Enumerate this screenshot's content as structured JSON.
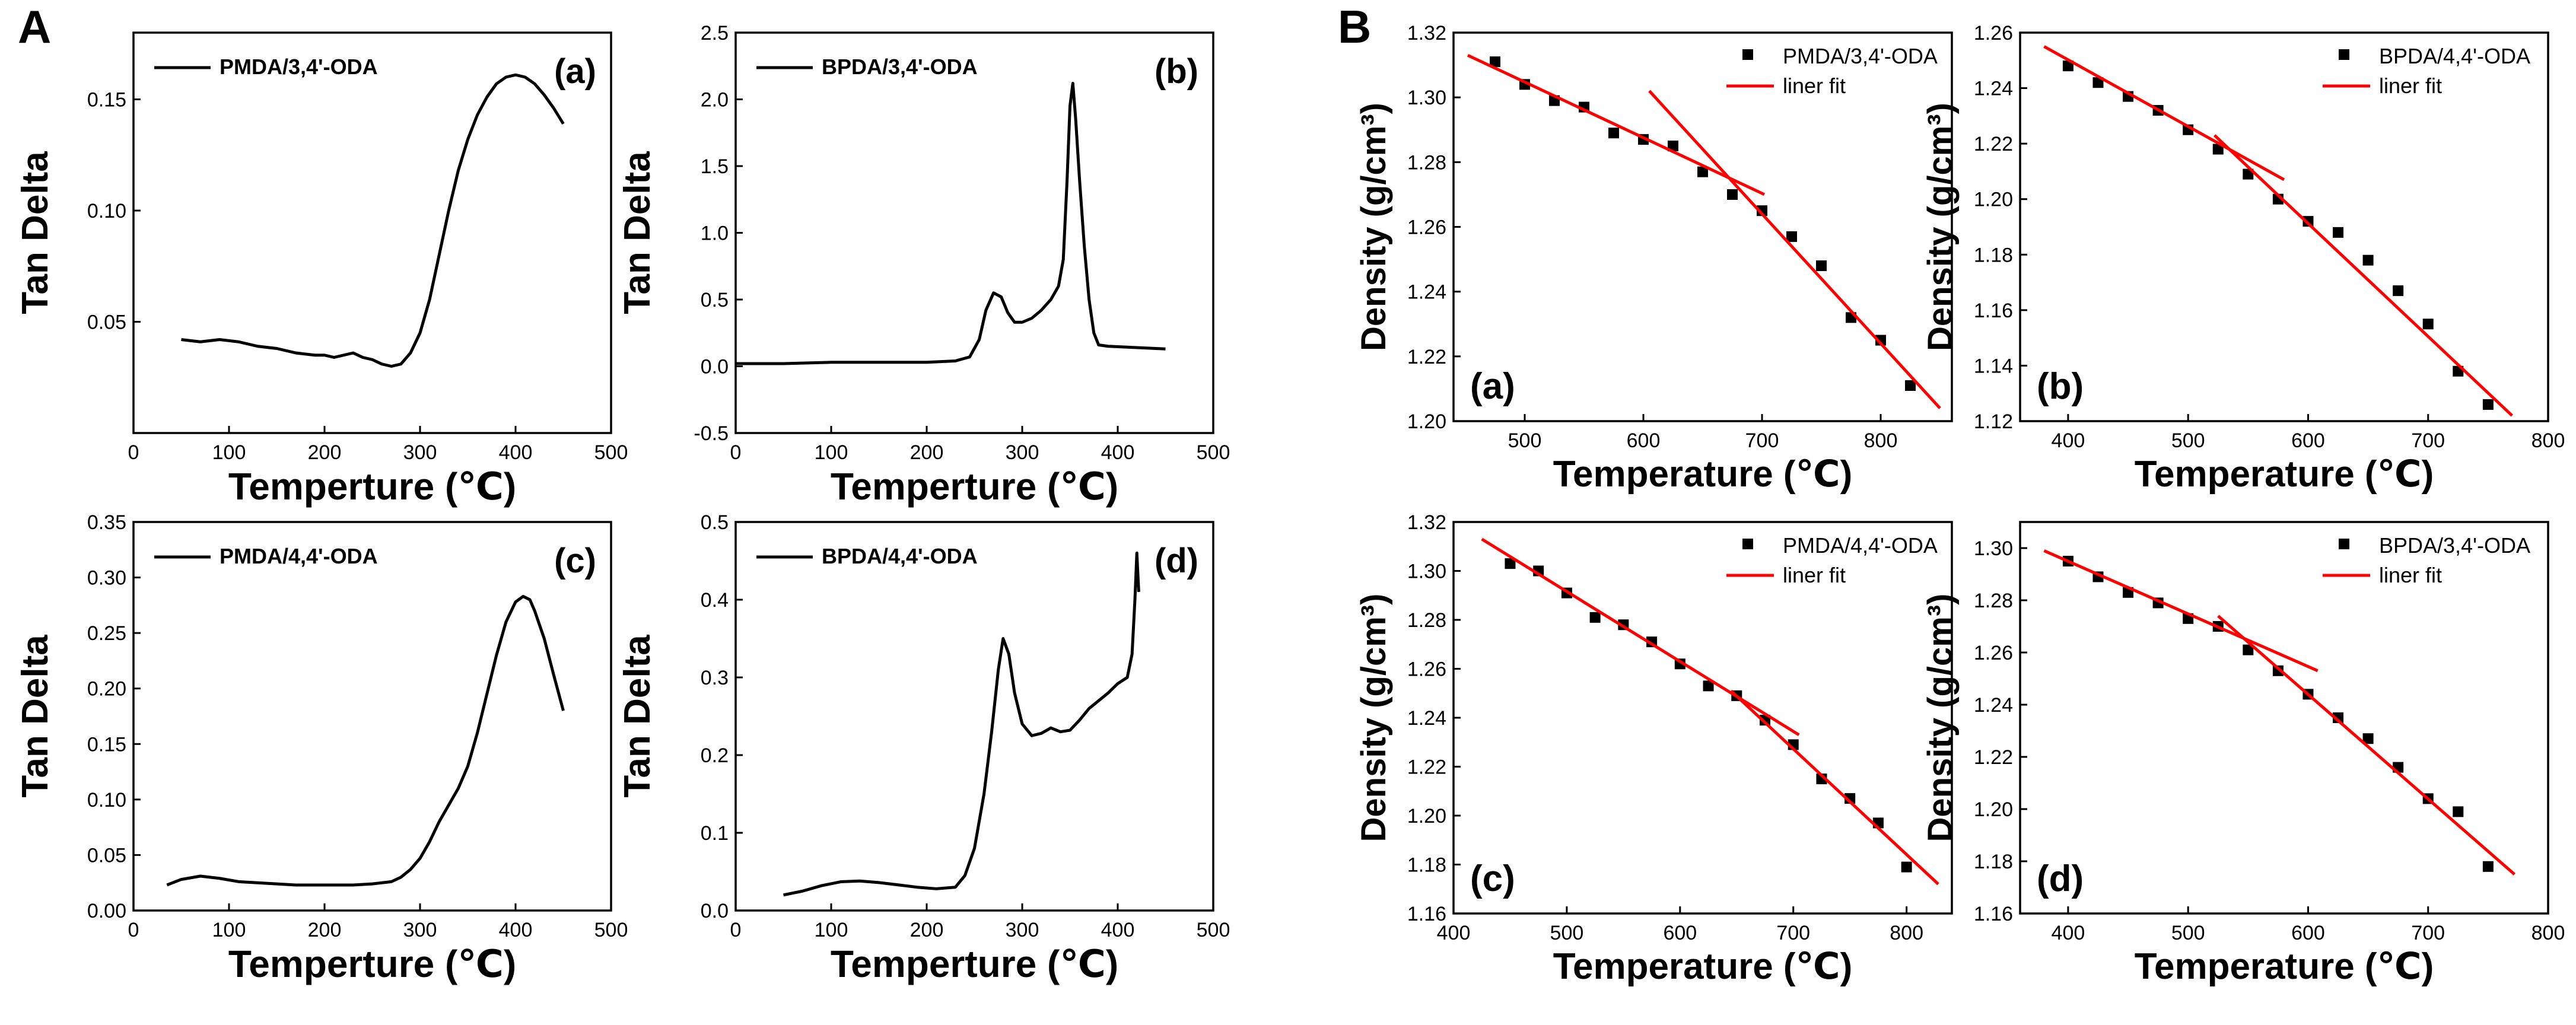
{
  "panel_labels": {
    "A": "A",
    "B": "B"
  },
  "chart_data": [
    {
      "id": "A-a",
      "group": "A",
      "type": "line",
      "title": "",
      "tag": "(a)",
      "xlabel": "Temperture (℃)",
      "ylabel": "Tan Delta",
      "xlim": [
        0,
        500
      ],
      "ylim": [
        0.0,
        0.18
      ],
      "xticks": [
        0,
        100,
        200,
        300,
        400,
        500
      ],
      "yticks": [
        0.05,
        0.1,
        0.15
      ],
      "ytick_labels": [
        "0.05",
        "0.10",
        "0.15"
      ],
      "series": [
        {
          "name": "PMDA/3,4'-ODA",
          "color": "#000000",
          "x": [
            50,
            70,
            90,
            110,
            130,
            150,
            170,
            190,
            200,
            210,
            220,
            230,
            240,
            250,
            260,
            270,
            280,
            290,
            300,
            310,
            320,
            330,
            340,
            350,
            360,
            370,
            380,
            390,
            400,
            410,
            420,
            430,
            440,
            450
          ],
          "y": [
            0.042,
            0.041,
            0.042,
            0.041,
            0.039,
            0.038,
            0.036,
            0.035,
            0.035,
            0.034,
            0.035,
            0.036,
            0.034,
            0.033,
            0.031,
            0.03,
            0.031,
            0.036,
            0.045,
            0.06,
            0.08,
            0.1,
            0.118,
            0.132,
            0.143,
            0.151,
            0.157,
            0.16,
            0.161,
            0.16,
            0.157,
            0.152,
            0.146,
            0.139
          ]
        }
      ]
    },
    {
      "id": "A-b",
      "group": "A",
      "type": "line",
      "title": "",
      "tag": "(b)",
      "xlabel": "Temperture (℃)",
      "ylabel": "Tan Delta",
      "xlim": [
        0,
        500
      ],
      "ylim": [
        -0.5,
        2.5
      ],
      "xticks": [
        0,
        100,
        200,
        300,
        400,
        500
      ],
      "yticks": [
        -0.5,
        0.0,
        0.5,
        1.0,
        1.5,
        2.0,
        2.5
      ],
      "ytick_labels": [
        "-0.5",
        "0.0",
        "0.5",
        "1.0",
        "1.5",
        "2.0",
        "2.5"
      ],
      "series": [
        {
          "name": "BPDA/3,4'-ODA",
          "color": "#000000",
          "x": [
            0,
            50,
            100,
            150,
            200,
            230,
            245,
            255,
            262,
            270,
            278,
            285,
            292,
            300,
            310,
            320,
            330,
            338,
            343,
            347,
            350,
            353,
            356,
            360,
            365,
            370,
            375,
            380,
            390,
            420,
            450
          ],
          "y": [
            0.02,
            0.02,
            0.03,
            0.03,
            0.03,
            0.04,
            0.07,
            0.2,
            0.42,
            0.55,
            0.52,
            0.4,
            0.33,
            0.33,
            0.36,
            0.42,
            0.5,
            0.6,
            0.8,
            1.4,
            1.95,
            2.12,
            1.85,
            1.4,
            0.9,
            0.5,
            0.25,
            0.16,
            0.15,
            0.14,
            0.13
          ]
        }
      ]
    },
    {
      "id": "A-c",
      "group": "A",
      "type": "line",
      "title": "",
      "tag": "(c)",
      "xlabel": "Temperture (℃)",
      "ylabel": "Tan Delta",
      "xlim": [
        0,
        500
      ],
      "ylim": [
        0.0,
        0.35
      ],
      "xticks": [
        0,
        100,
        200,
        300,
        400,
        500
      ],
      "yticks": [
        0.0,
        0.05,
        0.1,
        0.15,
        0.2,
        0.25,
        0.3,
        0.35
      ],
      "ytick_labels": [
        "0.00",
        "0.05",
        "0.10",
        "0.15",
        "0.20",
        "0.25",
        "0.30",
        "0.35"
      ],
      "series": [
        {
          "name": "PMDA/4,4'-ODA",
          "color": "#000000",
          "x": [
            35,
            50,
            70,
            90,
            110,
            130,
            150,
            170,
            190,
            210,
            230,
            250,
            270,
            280,
            290,
            300,
            310,
            320,
            330,
            340,
            350,
            360,
            370,
            380,
            390,
            400,
            408,
            415,
            420,
            430,
            440,
            450
          ],
          "y": [
            0.023,
            0.028,
            0.031,
            0.029,
            0.026,
            0.025,
            0.024,
            0.023,
            0.023,
            0.023,
            0.023,
            0.024,
            0.026,
            0.03,
            0.037,
            0.047,
            0.062,
            0.08,
            0.095,
            0.11,
            0.13,
            0.16,
            0.195,
            0.23,
            0.26,
            0.278,
            0.283,
            0.28,
            0.27,
            0.245,
            0.212,
            0.18
          ]
        }
      ]
    },
    {
      "id": "A-d",
      "group": "A",
      "type": "line",
      "title": "",
      "tag": "(d)",
      "xlabel": "Temperture (℃)",
      "ylabel": "Tan Delta",
      "xlim": [
        0,
        500
      ],
      "ylim": [
        0.0,
        0.5
      ],
      "xticks": [
        0,
        100,
        200,
        300,
        400,
        500
      ],
      "yticks": [
        0.0,
        0.1,
        0.2,
        0.3,
        0.4,
        0.5
      ],
      "ytick_labels": [
        "0.0",
        "0.1",
        "0.2",
        "0.3",
        "0.4",
        "0.5"
      ],
      "series": [
        {
          "name": "BPDA/4,4'-ODA",
          "color": "#000000",
          "x": [
            50,
            70,
            90,
            110,
            130,
            150,
            170,
            190,
            210,
            230,
            240,
            250,
            260,
            268,
            275,
            280,
            286,
            292,
            300,
            310,
            320,
            330,
            340,
            350,
            360,
            370,
            380,
            390,
            400,
            410,
            415,
            418,
            420,
            422
          ],
          "y": [
            0.02,
            0.025,
            0.032,
            0.037,
            0.038,
            0.036,
            0.033,
            0.03,
            0.028,
            0.03,
            0.045,
            0.08,
            0.15,
            0.23,
            0.31,
            0.35,
            0.33,
            0.28,
            0.24,
            0.225,
            0.228,
            0.235,
            0.23,
            0.232,
            0.245,
            0.26,
            0.27,
            0.28,
            0.292,
            0.3,
            0.33,
            0.4,
            0.46,
            0.41
          ]
        }
      ]
    },
    {
      "id": "B-a",
      "group": "B",
      "type": "scatter",
      "title": "",
      "tag": "(a)",
      "xlabel": "Temperature (℃)",
      "ylabel": "Density (g/cm³)",
      "xlim": [
        440,
        860
      ],
      "ylim": [
        1.2,
        1.32
      ],
      "xticks": [
        500,
        600,
        700,
        800
      ],
      "yticks": [
        1.2,
        1.22,
        1.24,
        1.26,
        1.28,
        1.3,
        1.32
      ],
      "ytick_labels": [
        "1.20",
        "1.22",
        "1.24",
        "1.26",
        "1.28",
        "1.30",
        "1.32"
      ],
      "series": [
        {
          "name": "PMDA/3,4'-ODA",
          "color": "#000000",
          "x": [
            475,
            500,
            525,
            550,
            575,
            600,
            625,
            650,
            675,
            700,
            725,
            750,
            775,
            800,
            825
          ],
          "y": [
            1.311,
            1.304,
            1.299,
            1.297,
            1.289,
            1.287,
            1.285,
            1.277,
            1.27,
            1.265,
            1.257,
            1.248,
            1.232,
            1.225,
            1.211
          ]
        }
      ],
      "fit_lines": [
        {
          "name": "liner fit",
          "color": "#ff0000",
          "x": [
            452,
            702
          ],
          "y": [
            1.313,
            1.27
          ]
        },
        {
          "name": "liner fit",
          "color": "#ff0000",
          "x": [
            605,
            850
          ],
          "y": [
            1.302,
            1.204
          ]
        }
      ]
    },
    {
      "id": "B-b",
      "group": "B",
      "type": "scatter",
      "title": "",
      "tag": "(b)",
      "xlabel": "Temperature (℃)",
      "ylabel": "Density (g/cm³)",
      "xlim": [
        360,
        800
      ],
      "ylim": [
        1.12,
        1.26
      ],
      "xticks": [
        400,
        500,
        600,
        700,
        800
      ],
      "yticks": [
        1.12,
        1.14,
        1.16,
        1.18,
        1.2,
        1.22,
        1.24,
        1.26
      ],
      "ytick_labels": [
        "1.12",
        "1.14",
        "1.16",
        "1.18",
        "1.20",
        "1.22",
        "1.24",
        "1.26"
      ],
      "series": [
        {
          "name": "BPDA/4,4'-ODA",
          "color": "#000000",
          "x": [
            400,
            425,
            450,
            475,
            500,
            525,
            550,
            575,
            600,
            625,
            650,
            675,
            700,
            725,
            750
          ],
          "y": [
            1.248,
            1.242,
            1.237,
            1.232,
            1.225,
            1.218,
            1.209,
            1.2,
            1.192,
            1.188,
            1.178,
            1.167,
            1.155,
            1.138,
            1.126
          ]
        }
      ],
      "fit_lines": [
        {
          "name": "liner fit",
          "color": "#ff0000",
          "x": [
            380,
            580
          ],
          "y": [
            1.255,
            1.207
          ]
        },
        {
          "name": "liner fit",
          "color": "#ff0000",
          "x": [
            522,
            770
          ],
          "y": [
            1.223,
            1.122
          ]
        }
      ]
    },
    {
      "id": "B-c",
      "group": "B",
      "type": "scatter",
      "title": "",
      "tag": "(c)",
      "xlabel": "Temperature (℃)",
      "ylabel": "Density (g/cm³)",
      "xlim": [
        400,
        840
      ],
      "ylim": [
        1.16,
        1.32
      ],
      "xticks": [
        400,
        500,
        600,
        700,
        800
      ],
      "yticks": [
        1.16,
        1.18,
        1.2,
        1.22,
        1.24,
        1.26,
        1.28,
        1.3,
        1.32
      ],
      "ytick_labels": [
        "1.16",
        "1.18",
        "1.20",
        "1.22",
        "1.24",
        "1.26",
        "1.28",
        "1.30",
        "1.32"
      ],
      "series": [
        {
          "name": "PMDA/4,4'-ODA",
          "color": "#000000",
          "x": [
            450,
            475,
            500,
            525,
            550,
            575,
            600,
            625,
            650,
            675,
            700,
            725,
            750,
            775,
            800
          ],
          "y": [
            1.303,
            1.3,
            1.291,
            1.281,
            1.278,
            1.271,
            1.262,
            1.253,
            1.249,
            1.239,
            1.229,
            1.215,
            1.207,
            1.197,
            1.179
          ]
        }
      ],
      "fit_lines": [
        {
          "name": "liner fit",
          "color": "#ff0000",
          "x": [
            425,
            705
          ],
          "y": [
            1.313,
            1.233
          ]
        },
        {
          "name": "liner fit",
          "color": "#ff0000",
          "x": [
            645,
            828
          ],
          "y": [
            1.251,
            1.172
          ]
        }
      ]
    },
    {
      "id": "B-d",
      "group": "B",
      "type": "scatter",
      "title": "",
      "tag": "(d)",
      "xlabel": "Temperature (℃)",
      "ylabel": "Density (g/cm³)",
      "xlim": [
        360,
        800
      ],
      "ylim": [
        1.16,
        1.31
      ],
      "xticks": [
        400,
        500,
        600,
        700,
        800
      ],
      "yticks": [
        1.16,
        1.18,
        1.2,
        1.22,
        1.24,
        1.26,
        1.28,
        1.3
      ],
      "ytick_labels": [
        "1.16",
        "1.18",
        "1.20",
        "1.22",
        "1.24",
        "1.26",
        "1.28",
        "1.30"
      ],
      "series": [
        {
          "name": "BPDA/3,4'-ODA",
          "color": "#000000",
          "x": [
            400,
            425,
            450,
            475,
            500,
            525,
            550,
            575,
            600,
            625,
            650,
            675,
            700,
            725,
            750
          ],
          "y": [
            1.295,
            1.289,
            1.283,
            1.279,
            1.273,
            1.27,
            1.261,
            1.253,
            1.244,
            1.235,
            1.227,
            1.216,
            1.204,
            1.199,
            1.178
          ]
        }
      ],
      "fit_lines": [
        {
          "name": "liner fit",
          "color": "#ff0000",
          "x": [
            380,
            608
          ],
          "y": [
            1.299,
            1.253
          ]
        },
        {
          "name": "liner fit",
          "color": "#ff0000",
          "x": [
            525,
            772
          ],
          "y": [
            1.274,
            1.175
          ]
        }
      ]
    }
  ]
}
